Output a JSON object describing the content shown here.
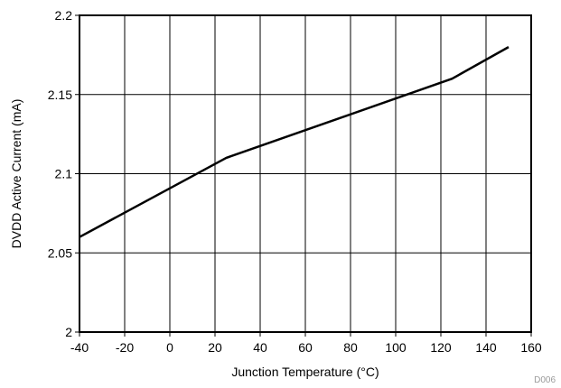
{
  "chart_data": {
    "type": "line",
    "title": "",
    "xlabel": "Junction Temperature (°C)",
    "ylabel": "DVDD Active Current (mA)",
    "xlim": [
      -40,
      160
    ],
    "ylim": [
      2,
      2.2
    ],
    "xticks": [
      -40,
      -20,
      0,
      20,
      40,
      60,
      80,
      100,
      120,
      140,
      160
    ],
    "yticks": [
      2,
      2.05,
      2.1,
      2.15,
      2.2
    ],
    "xtick_labels": [
      "-40",
      "-20",
      "0",
      "20",
      "40",
      "60",
      "80",
      "100",
      "120",
      "140",
      "160"
    ],
    "ytick_labels": [
      "2",
      "2.05",
      "2.1",
      "2.15",
      "2.2"
    ],
    "grid": true,
    "series": [
      {
        "x": [
          -40,
          25,
          125,
          150
        ],
        "y": [
          2.06,
          2.11,
          2.16,
          2.18
        ],
        "color": "#000000"
      }
    ],
    "figure_id": "D006"
  }
}
